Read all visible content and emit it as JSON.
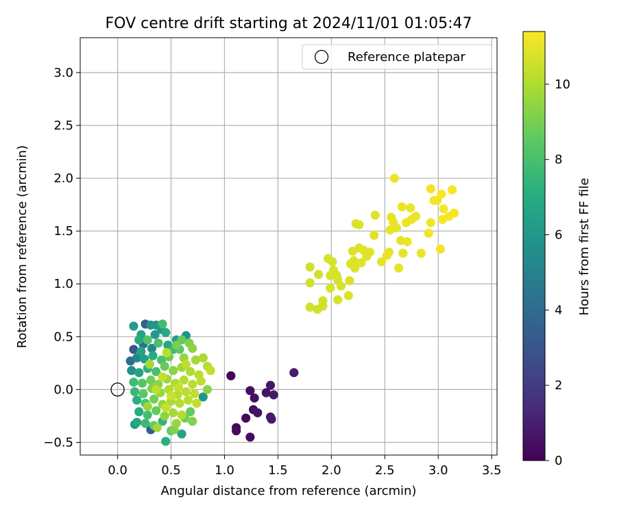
{
  "chart_data": {
    "type": "scatter",
    "title": "FOV centre drift starting at 2024/11/01 01:05:47",
    "xlabel": "Angular distance from reference (arcmin)",
    "ylabel": "Rotation from reference (arcmin)",
    "xlim": [
      -0.35,
      3.55
    ],
    "ylim": [
      -0.62,
      3.33
    ],
    "xticks": [
      "0.0",
      "0.5",
      "1.0",
      "1.5",
      "2.0",
      "2.5",
      "3.0",
      "3.5"
    ],
    "xtick_values": [
      0,
      0.5,
      1,
      1.5,
      2,
      2.5,
      3,
      3.5
    ],
    "yticks": [
      "−0.5",
      "0.0",
      "0.5",
      "1.0",
      "1.5",
      "2.0",
      "2.5",
      "3.0"
    ],
    "ytick_values": [
      -0.5,
      0,
      0.5,
      1,
      1.5,
      2,
      2.5,
      3
    ],
    "grid": true,
    "legend": {
      "position": "top-right",
      "label": "Reference platepar"
    },
    "reference_point": {
      "x": 0.0,
      "y": 0.0
    },
    "colorbar": {
      "label": "Hours from first FF file",
      "colormap": "viridis",
      "range": [
        0,
        11.4
      ],
      "ticks": [
        "0",
        "2",
        "4",
        "6",
        "8",
        "10"
      ],
      "tick_values": [
        0,
        2,
        4,
        6,
        8,
        10
      ]
    },
    "series": [
      {
        "points": [
          {
            "x": 1.06,
            "y": 0.13,
            "h": 0.1
          },
          {
            "x": 1.11,
            "y": -0.36,
            "h": 0.2
          },
          {
            "x": 1.11,
            "y": -0.39,
            "h": 0.3
          },
          {
            "x": 1.2,
            "y": -0.27,
            "h": 0.3
          },
          {
            "x": 1.24,
            "y": -0.45,
            "h": 0.4
          },
          {
            "x": 1.24,
            "y": -0.01,
            "h": 0.4
          },
          {
            "x": 1.27,
            "y": -0.19,
            "h": 0.5
          },
          {
            "x": 1.28,
            "y": -0.08,
            "h": 0.5
          },
          {
            "x": 1.31,
            "y": -0.22,
            "h": 0.6
          },
          {
            "x": 1.39,
            "y": -0.03,
            "h": 0.6
          },
          {
            "x": 1.43,
            "y": 0.04,
            "h": 0.7
          },
          {
            "x": 1.43,
            "y": -0.26,
            "h": 0.7
          },
          {
            "x": 1.44,
            "y": -0.28,
            "h": 0.8
          },
          {
            "x": 1.46,
            "y": -0.05,
            "h": 0.8
          },
          {
            "x": 1.65,
            "y": 0.16,
            "h": 0.9
          },
          {
            "x": 0.31,
            "y": 0.61,
            "h": 5.8
          },
          {
            "x": 0.36,
            "y": 0.61,
            "h": 5.9
          },
          {
            "x": 0.15,
            "y": 0.6,
            "h": 6.2
          },
          {
            "x": 0.26,
            "y": 0.62,
            "h": 3.4
          },
          {
            "x": 0.42,
            "y": 0.62,
            "h": 7.8
          },
          {
            "x": 0.41,
            "y": 0.57,
            "h": 6.0
          },
          {
            "x": 0.64,
            "y": 0.51,
            "h": 5.8
          },
          {
            "x": 0.22,
            "y": 0.52,
            "h": 6.6
          },
          {
            "x": 0.55,
            "y": 0.47,
            "h": 6.3
          },
          {
            "x": 0.35,
            "y": 0.52,
            "h": 6.1
          },
          {
            "x": 0.45,
            "y": 0.54,
            "h": 6.9
          },
          {
            "x": 0.2,
            "y": 0.47,
            "h": 7.0
          },
          {
            "x": 0.28,
            "y": 0.47,
            "h": 8.2
          },
          {
            "x": 0.6,
            "y": 0.47,
            "h": 8.6
          },
          {
            "x": 0.67,
            "y": 0.44,
            "h": 9.2
          },
          {
            "x": 0.15,
            "y": 0.38,
            "h": 3.2
          },
          {
            "x": 0.24,
            "y": 0.43,
            "h": 4.1
          },
          {
            "x": 0.32,
            "y": 0.39,
            "h": 5.4
          },
          {
            "x": 0.47,
            "y": 0.42,
            "h": 6.8
          },
          {
            "x": 0.52,
            "y": 0.38,
            "h": 7.6
          },
          {
            "x": 0.58,
            "y": 0.38,
            "h": 8.4
          },
          {
            "x": 0.7,
            "y": 0.39,
            "h": 9.4
          },
          {
            "x": 0.12,
            "y": 0.27,
            "h": 4.0
          },
          {
            "x": 0.18,
            "y": 0.3,
            "h": 5.2
          },
          {
            "x": 0.25,
            "y": 0.29,
            "h": 6.4
          },
          {
            "x": 0.33,
            "y": 0.32,
            "h": 7.1
          },
          {
            "x": 0.41,
            "y": 0.28,
            "h": 8.1
          },
          {
            "x": 0.48,
            "y": 0.31,
            "h": 8.8
          },
          {
            "x": 0.62,
            "y": 0.3,
            "h": 9.5
          },
          {
            "x": 0.73,
            "y": 0.28,
            "h": 9.8
          },
          {
            "x": 0.8,
            "y": 0.3,
            "h": 9.9
          },
          {
            "x": 0.84,
            "y": 0.22,
            "h": 10.1
          },
          {
            "x": 0.87,
            "y": 0.18,
            "h": 10.3
          },
          {
            "x": 0.13,
            "y": 0.18,
            "h": 5.7
          },
          {
            "x": 0.2,
            "y": 0.16,
            "h": 6.5
          },
          {
            "x": 0.28,
            "y": 0.2,
            "h": 7.3
          },
          {
            "x": 0.36,
            "y": 0.17,
            "h": 8.0
          },
          {
            "x": 0.44,
            "y": 0.22,
            "h": 8.7
          },
          {
            "x": 0.52,
            "y": 0.18,
            "h": 9.3
          },
          {
            "x": 0.6,
            "y": 0.21,
            "h": 9.7
          },
          {
            "x": 0.68,
            "y": 0.17,
            "h": 10.0
          },
          {
            "x": 0.76,
            "y": 0.14,
            "h": 10.2
          },
          {
            "x": 0.15,
            "y": 0.07,
            "h": 7.8
          },
          {
            "x": 0.23,
            "y": 0.06,
            "h": 8.3
          },
          {
            "x": 0.31,
            "y": 0.09,
            "h": 8.9
          },
          {
            "x": 0.38,
            "y": 0.05,
            "h": 9.3
          },
          {
            "x": 0.46,
            "y": 0.1,
            "h": 9.7
          },
          {
            "x": 0.54,
            "y": 0.06,
            "h": 10.0
          },
          {
            "x": 0.62,
            "y": 0.09,
            "h": 10.1
          },
          {
            "x": 0.7,
            "y": 0.05,
            "h": 10.2
          },
          {
            "x": 0.78,
            "y": 0.08,
            "h": 10.3
          },
          {
            "x": 0.16,
            "y": -0.02,
            "h": 7.6
          },
          {
            "x": 0.24,
            "y": -0.04,
            "h": 8.4
          },
          {
            "x": 0.32,
            "y": 0.01,
            "h": 9.1
          },
          {
            "x": 0.4,
            "y": -0.03,
            "h": 9.6
          },
          {
            "x": 0.48,
            "y": 0.0,
            "h": 10.0
          },
          {
            "x": 0.56,
            "y": -0.05,
            "h": 10.1
          },
          {
            "x": 0.64,
            "y": -0.02,
            "h": 10.2
          },
          {
            "x": 0.72,
            "y": -0.04,
            "h": 10.3
          },
          {
            "x": 0.8,
            "y": -0.07,
            "h": 5.9
          },
          {
            "x": 0.84,
            "y": 0.0,
            "h": 9.4
          },
          {
            "x": 0.18,
            "y": -0.1,
            "h": 7.2
          },
          {
            "x": 0.26,
            "y": -0.13,
            "h": 8.1
          },
          {
            "x": 0.34,
            "y": -0.09,
            "h": 8.9
          },
          {
            "x": 0.42,
            "y": -0.14,
            "h": 9.5
          },
          {
            "x": 0.5,
            "y": -0.11,
            "h": 9.9
          },
          {
            "x": 0.58,
            "y": -0.13,
            "h": 10.1
          },
          {
            "x": 0.66,
            "y": -0.1,
            "h": 10.2
          },
          {
            "x": 0.74,
            "y": -0.13,
            "h": 10.3
          },
          {
            "x": 0.2,
            "y": -0.21,
            "h": 7.0
          },
          {
            "x": 0.28,
            "y": -0.24,
            "h": 7.9
          },
          {
            "x": 0.36,
            "y": -0.2,
            "h": 8.7
          },
          {
            "x": 0.44,
            "y": -0.25,
            "h": 9.4
          },
          {
            "x": 0.52,
            "y": -0.22,
            "h": 9.8
          },
          {
            "x": 0.6,
            "y": -0.24,
            "h": 10.1
          },
          {
            "x": 0.68,
            "y": -0.21,
            "h": 8.6
          },
          {
            "x": 0.18,
            "y": -0.31,
            "h": 6.8
          },
          {
            "x": 0.26,
            "y": -0.32,
            "h": 7.7
          },
          {
            "x": 0.34,
            "y": -0.34,
            "h": 8.6
          },
          {
            "x": 0.42,
            "y": -0.3,
            "h": 7.4
          },
          {
            "x": 0.55,
            "y": -0.32,
            "h": 9.6
          },
          {
            "x": 0.63,
            "y": -0.27,
            "h": 8.9
          },
          {
            "x": 0.7,
            "y": -0.3,
            "h": 9.2
          },
          {
            "x": 0.16,
            "y": -0.33,
            "h": 6.2
          },
          {
            "x": 0.31,
            "y": -0.38,
            "h": 3.3
          },
          {
            "x": 0.37,
            "y": -0.36,
            "h": 9.7
          },
          {
            "x": 0.5,
            "y": -0.39,
            "h": 8.6
          },
          {
            "x": 0.53,
            "y": -0.38,
            "h": 9.2
          },
          {
            "x": 0.6,
            "y": -0.42,
            "h": 6.7
          },
          {
            "x": 0.45,
            "y": -0.49,
            "h": 7.2
          },
          {
            "x": 0.22,
            "y": 0.36,
            "h": 6.6
          },
          {
            "x": 0.38,
            "y": 0.44,
            "h": 8.0
          },
          {
            "x": 0.55,
            "y": 0.42,
            "h": 9.0
          },
          {
            "x": 0.3,
            "y": 0.24,
            "h": 9.8
          },
          {
            "x": 0.46,
            "y": 0.35,
            "h": 10.2
          },
          {
            "x": 0.64,
            "y": 0.24,
            "h": 10.3
          },
          {
            "x": 0.42,
            "y": 0.12,
            "h": 10.4
          },
          {
            "x": 0.36,
            "y": 0.0,
            "h": 10.3
          },
          {
            "x": 0.5,
            "y": -0.06,
            "h": 10.5
          },
          {
            "x": 0.28,
            "y": -0.16,
            "h": 9.6
          },
          {
            "x": 0.45,
            "y": -0.17,
            "h": 10.4
          },
          {
            "x": 0.57,
            "y": 0.02,
            "h": 10.4
          },
          {
            "x": 1.8,
            "y": 1.16,
            "h": 10.6
          },
          {
            "x": 1.8,
            "y": 1.01,
            "h": 10.6
          },
          {
            "x": 1.8,
            "y": 0.78,
            "h": 10.6
          },
          {
            "x": 1.87,
            "y": 0.76,
            "h": 10.6
          },
          {
            "x": 1.88,
            "y": 1.09,
            "h": 10.6
          },
          {
            "x": 1.92,
            "y": 0.84,
            "h": 10.6
          },
          {
            "x": 1.92,
            "y": 0.79,
            "h": 10.6
          },
          {
            "x": 1.97,
            "y": 1.24,
            "h": 10.7
          },
          {
            "x": 1.99,
            "y": 1.08,
            "h": 10.7
          },
          {
            "x": 2.01,
            "y": 1.21,
            "h": 10.7
          },
          {
            "x": 2.02,
            "y": 1.13,
            "h": 10.7
          },
          {
            "x": 2.05,
            "y": 1.08,
            "h": 10.7
          },
          {
            "x": 2.06,
            "y": 1.04,
            "h": 10.7
          },
          {
            "x": 2.06,
            "y": 0.85,
            "h": 10.7
          },
          {
            "x": 2.09,
            "y": 0.98,
            "h": 10.7
          },
          {
            "x": 1.99,
            "y": 0.96,
            "h": 10.7
          },
          {
            "x": 2.16,
            "y": 0.89,
            "h": 10.8
          },
          {
            "x": 2.17,
            "y": 1.03,
            "h": 10.8
          },
          {
            "x": 2.18,
            "y": 1.19,
            "h": 10.8
          },
          {
            "x": 2.2,
            "y": 1.31,
            "h": 10.8
          },
          {
            "x": 2.21,
            "y": 1.22,
            "h": 10.8
          },
          {
            "x": 2.22,
            "y": 1.15,
            "h": 10.8
          },
          {
            "x": 2.23,
            "y": 1.57,
            "h": 10.8
          },
          {
            "x": 2.26,
            "y": 1.56,
            "h": 10.8
          },
          {
            "x": 2.26,
            "y": 1.34,
            "h": 10.8
          },
          {
            "x": 2.28,
            "y": 1.2,
            "h": 10.9
          },
          {
            "x": 2.3,
            "y": 1.32,
            "h": 10.9
          },
          {
            "x": 2.33,
            "y": 1.26,
            "h": 10.9
          },
          {
            "x": 2.36,
            "y": 1.3,
            "h": 10.9
          },
          {
            "x": 2.4,
            "y": 1.46,
            "h": 10.9
          },
          {
            "x": 2.41,
            "y": 1.65,
            "h": 10.9
          },
          {
            "x": 2.47,
            "y": 1.21,
            "h": 11.0
          },
          {
            "x": 2.52,
            "y": 1.27,
            "h": 11.0
          },
          {
            "x": 2.54,
            "y": 1.3,
            "h": 11.0
          },
          {
            "x": 2.55,
            "y": 1.51,
            "h": 11.0
          },
          {
            "x": 2.56,
            "y": 1.63,
            "h": 11.0
          },
          {
            "x": 2.58,
            "y": 1.58,
            "h": 11.0
          },
          {
            "x": 2.59,
            "y": 2.0,
            "h": 11.1
          },
          {
            "x": 2.61,
            "y": 1.53,
            "h": 11.0
          },
          {
            "x": 2.63,
            "y": 1.15,
            "h": 11.0
          },
          {
            "x": 2.65,
            "y": 1.41,
            "h": 11.0
          },
          {
            "x": 2.66,
            "y": 1.73,
            "h": 11.1
          },
          {
            "x": 2.67,
            "y": 1.29,
            "h": 11.0
          },
          {
            "x": 2.7,
            "y": 1.58,
            "h": 11.1
          },
          {
            "x": 2.71,
            "y": 1.4,
            "h": 11.1
          },
          {
            "x": 2.74,
            "y": 1.72,
            "h": 11.1
          },
          {
            "x": 2.75,
            "y": 1.61,
            "h": 11.1
          },
          {
            "x": 2.79,
            "y": 1.64,
            "h": 11.1
          },
          {
            "x": 2.84,
            "y": 1.29,
            "h": 11.1
          },
          {
            "x": 2.91,
            "y": 1.48,
            "h": 11.2
          },
          {
            "x": 2.93,
            "y": 1.58,
            "h": 11.2
          },
          {
            "x": 2.93,
            "y": 1.9,
            "h": 11.2
          },
          {
            "x": 2.96,
            "y": 1.79,
            "h": 11.2
          },
          {
            "x": 2.99,
            "y": 1.79,
            "h": 11.2
          },
          {
            "x": 3.02,
            "y": 1.33,
            "h": 11.2
          },
          {
            "x": 3.03,
            "y": 1.85,
            "h": 11.3
          },
          {
            "x": 3.04,
            "y": 1.61,
            "h": 11.3
          },
          {
            "x": 3.05,
            "y": 1.71,
            "h": 11.3
          },
          {
            "x": 3.1,
            "y": 1.64,
            "h": 11.3
          },
          {
            "x": 3.13,
            "y": 1.89,
            "h": 11.3
          },
          {
            "x": 3.15,
            "y": 1.67,
            "h": 11.3
          }
        ]
      }
    ]
  }
}
